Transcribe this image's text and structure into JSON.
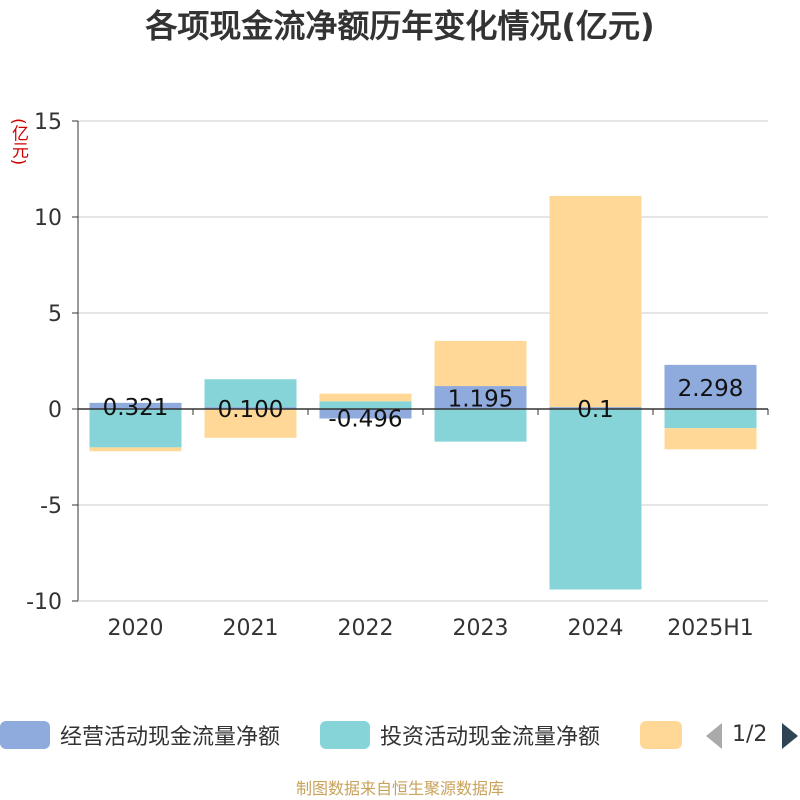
{
  "chart_data": {
    "type": "bar",
    "stacked": true,
    "title": "各项现金流净额历年变化情况(亿元)",
    "ylabel": "(亿元)",
    "ylim": [
      -10,
      15
    ],
    "yticks": [
      15,
      10,
      5,
      0,
      -5,
      -10
    ],
    "grid": true,
    "legend_position": "bottom",
    "categories": [
      "2020",
      "2021",
      "2022",
      "2023",
      "2024",
      "2025H1"
    ],
    "series": [
      {
        "name": "经营活动现金流量净额",
        "color": "#8faadc",
        "values": [
          0.321,
          0.1,
          -0.496,
          1.195,
          0.1,
          2.298
        ],
        "labels": [
          "0.321",
          "0.100",
          "-0.496",
          "1.195",
          "0.1",
          "2.298"
        ]
      },
      {
        "name": "投资活动现金流量净额",
        "color": "#86d4d8",
        "values": [
          -2.0,
          1.45,
          0.4,
          -1.7,
          -9.4,
          -1.0
        ]
      },
      {
        "name": "",
        "color": "#ffd898",
        "values": [
          -0.2,
          -1.5,
          0.4,
          2.35,
          11.0,
          -1.1
        ]
      }
    ]
  },
  "legend": {
    "items": [
      {
        "label": "经营活动现金流量净额",
        "color": "#8faadc"
      },
      {
        "label": "投资活动现金流量净额",
        "color": "#86d4d8"
      },
      {
        "label": "",
        "color": "#ffd898"
      }
    ],
    "page": "1/2"
  },
  "source": "制图数据来自恒生聚源数据库"
}
